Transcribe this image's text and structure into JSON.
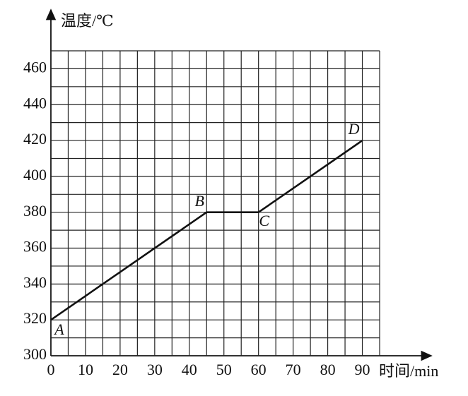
{
  "chart_data": {
    "type": "line",
    "y_label": "温度/℃",
    "x_label": "时间/min",
    "x": [
      0,
      45,
      60,
      90
    ],
    "values": [
      320,
      380,
      380,
      420
    ],
    "point_labels": [
      "A",
      "B",
      "C",
      "D"
    ],
    "color": "#111111",
    "xlim": [
      0,
      95
    ],
    "ylim": [
      300,
      470
    ],
    "xticks": [
      0,
      10,
      20,
      30,
      40,
      50,
      60,
      70,
      80,
      90
    ],
    "yticks": [
      300,
      320,
      340,
      360,
      380,
      400,
      420,
      440,
      460
    ],
    "xgrid": [
      0,
      5,
      10,
      15,
      20,
      25,
      30,
      35,
      40,
      45,
      50,
      55,
      60,
      65,
      70,
      75,
      80,
      85,
      90,
      95
    ],
    "ygrid": [
      300,
      310,
      320,
      330,
      340,
      350,
      360,
      370,
      380,
      390,
      400,
      410,
      420,
      430,
      440,
      450,
      460,
      470
    ]
  }
}
